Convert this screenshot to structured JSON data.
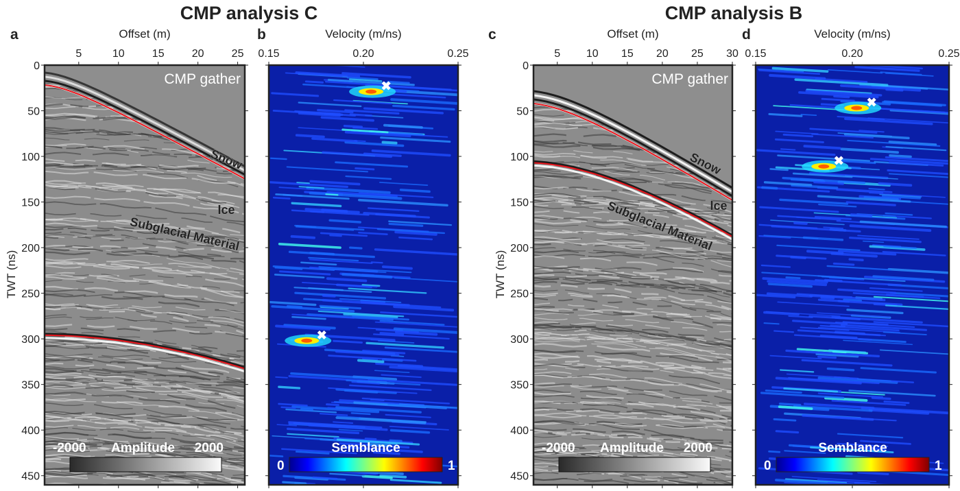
{
  "figure_titles": [
    "CMP analysis C",
    "CMP analysis B"
  ],
  "colors": {
    "reflector": "#e8141b",
    "semblance_bg": "#0a1fa8",
    "gather_bg": "#8c8c8c"
  },
  "chart_data": [
    {
      "panel": "a",
      "type": "heatmap",
      "subtype": "cmp-gather",
      "xlabel": "Offset (m)",
      "ylabel": "TWT (ns)",
      "xlim": [
        0.7,
        25.9
      ],
      "ylim": [
        0,
        460
      ],
      "xticks": [
        5,
        10,
        15,
        20,
        25
      ],
      "yticks": [
        0,
        50,
        100,
        150,
        200,
        250,
        300,
        350,
        400,
        450
      ],
      "inset_label": "CMP gather",
      "reflectors": [
        {
          "name": "Snow",
          "points": [
            [
              1,
              22
            ],
            [
              26,
              125
            ]
          ]
        },
        {
          "name": "Subglacial Material",
          "points": [
            [
              1,
              296
            ],
            [
              26,
              333
            ]
          ]
        }
      ],
      "layer_labels": [
        "Snow",
        "Ice",
        "Subglacial Material"
      ],
      "colorbar": {
        "label": "Amplitude",
        "min": "-2000",
        "max": "2000",
        "cmap": "gray"
      }
    },
    {
      "panel": "b",
      "type": "heatmap",
      "subtype": "semblance",
      "xlabel": "Velocity (m/ns)",
      "ylabel": "",
      "xlim": [
        0.15,
        0.25
      ],
      "ylim": [
        0,
        460
      ],
      "xticks": [
        "0.15",
        "0.20",
        "0.25"
      ],
      "picks": [
        [
          0.212,
          23
        ],
        [
          0.178,
          296
        ]
      ],
      "colorbar": {
        "label": "Semblance",
        "min": "0",
        "max": "1",
        "cmap": "jet"
      }
    },
    {
      "panel": "c",
      "type": "heatmap",
      "subtype": "cmp-gather",
      "xlabel": "Offset (m)",
      "ylabel": "TWT (ns)",
      "xlim": [
        1.6,
        30
      ],
      "ylim": [
        0,
        460
      ],
      "xticks": [
        5,
        10,
        15,
        20,
        25,
        30
      ],
      "yticks": [
        0,
        50,
        100,
        150,
        200,
        250,
        300,
        350,
        400,
        450
      ],
      "inset_label": "CMP gather",
      "reflectors": [
        {
          "name": "Snow",
          "points": [
            [
              1.6,
              42
            ],
            [
              30,
              148
            ]
          ]
        },
        {
          "name": "Subglacial Material",
          "points": [
            [
              1.6,
              107
            ],
            [
              30,
              188
            ]
          ]
        }
      ],
      "layer_labels": [
        "Snow",
        "Ice",
        "Subglacial Material"
      ],
      "colorbar": {
        "label": "Amplitude",
        "min": "-2000",
        "max": "2000",
        "cmap": "gray"
      }
    },
    {
      "panel": "d",
      "type": "heatmap",
      "subtype": "semblance",
      "xlabel": "Velocity (m/ns)",
      "ylabel": "",
      "xlim": [
        0.15,
        0.25
      ],
      "ylim": [
        0,
        460
      ],
      "xticks": [
        "0.15",
        "0.20",
        "0.25"
      ],
      "picks": [
        [
          0.21,
          41
        ],
        [
          0.193,
          105
        ]
      ],
      "colorbar": {
        "label": "Semblance",
        "min": "0",
        "max": "1",
        "cmap": "jet"
      }
    }
  ]
}
